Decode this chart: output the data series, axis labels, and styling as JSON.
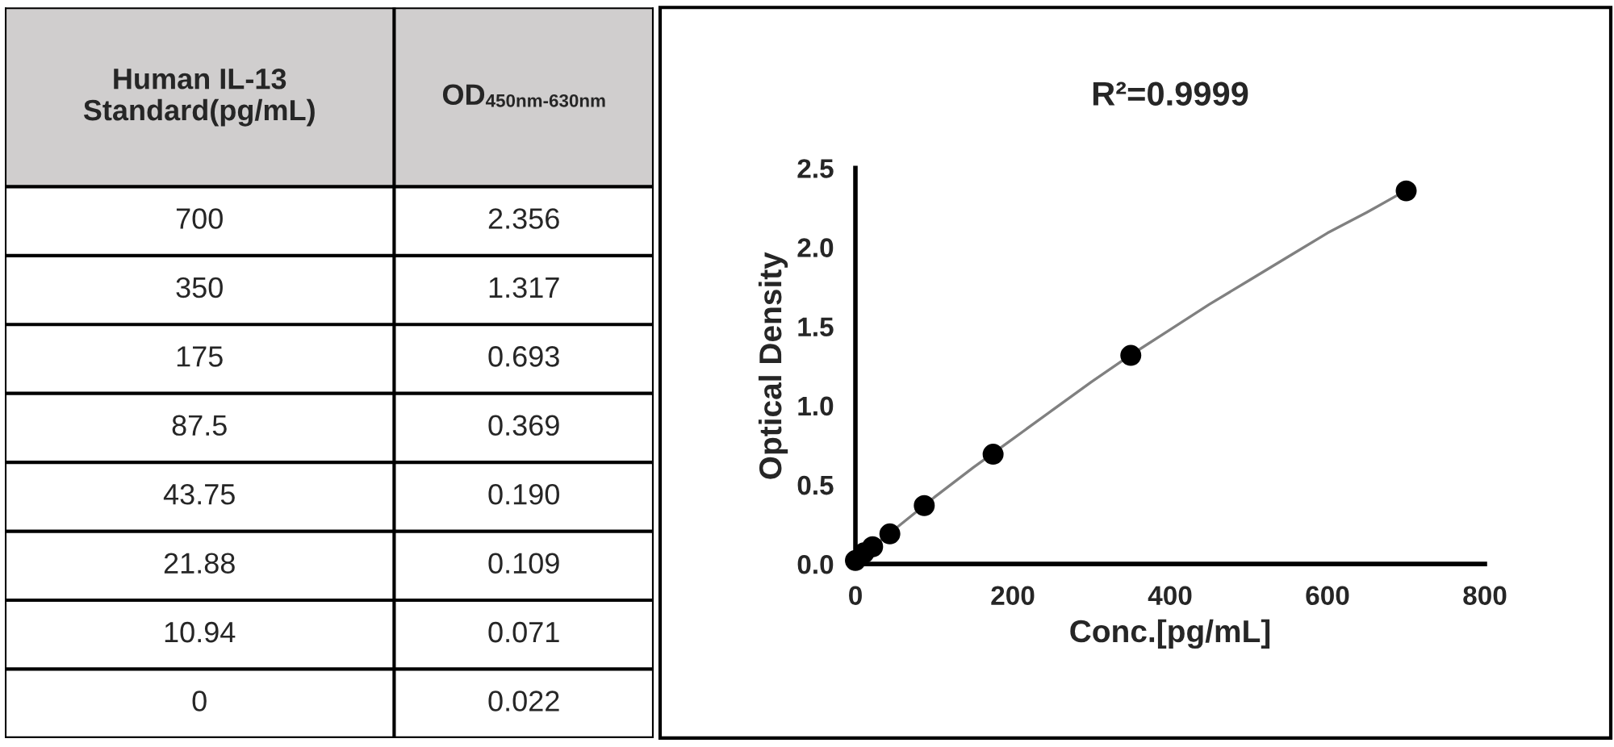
{
  "chart_data": [
    {
      "type": "other",
      "annotations": [
        "Human IL-13\nStandard(pg/mL)",
        "OD$_{450nm-630nm}$",
        "700",
        "2.356",
        "350",
        "1.317",
        "175",
        "0.693",
        "87.5",
        "0.369",
        "43.75",
        "0.190",
        "21.88",
        "0.109",
        "10.94",
        "0.071",
        "0",
        "0.022"
      ]
    },
    {
      "type": "scatter",
      "title": "R²=0.9999",
      "xlabel": "Conc.[pg/mL]",
      "ylabel": "Optical Density",
      "xlim": [
        0,
        800
      ],
      "xticks": [
        0,
        200,
        400,
        600,
        800
      ],
      "ylim": [
        0,
        2.5
      ],
      "yticks": [
        {
          "value": 0,
          "label": "0.0"
        },
        0.5,
        {
          "value": 1,
          "label": "1.0"
        },
        1.5,
        {
          "value": 2,
          "label": "2.0"
        },
        2.5
      ],
      "series": [
        {
          "type": "line",
          "color": "#808080",
          "marker": "none",
          "line_style": "solid",
          "x": [
            0,
            50,
            100,
            150,
            200,
            250,
            300,
            350,
            400,
            450,
            500,
            550,
            600,
            650,
            700
          ],
          "values": [
            0.02,
            0.22,
            0.42,
            0.61,
            0.79,
            0.97,
            1.15,
            1.32,
            1.48,
            1.64,
            1.79,
            1.94,
            2.09,
            2.22,
            2.36
          ]
        },
        {
          "type": "scatter",
          "color": "#000000",
          "marker": "circle",
          "x": [
            700,
            350,
            175,
            87.5,
            43.75,
            21.88,
            10.94,
            0
          ],
          "values": [
            2.356,
            1.317,
            0.693,
            0.369,
            0.19,
            0.109,
            0.071,
            0.022
          ]
        }
      ]
    }
  ]
}
